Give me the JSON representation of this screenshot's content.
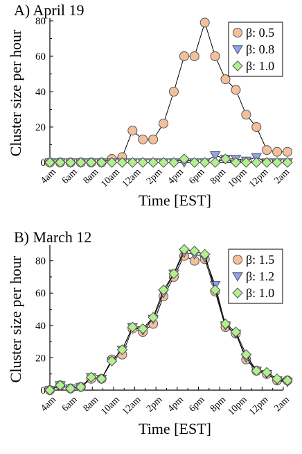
{
  "colors": {
    "series_0": "#F4C09C",
    "series_1": "#8EA3F2",
    "series_2": "#B2F08E",
    "line": "#000000"
  },
  "chart_data": [
    {
      "type": "line",
      "title": "A)   April 19",
      "xlabel": "Time [EST]",
      "ylabel": "Cluster size per hour",
      "ylim": [
        0,
        80
      ],
      "xlim": [
        0,
        22
      ],
      "yticks": [
        "0",
        "20",
        "40",
        "60",
        "80"
      ],
      "xtick_labels": [
        "4am",
        "6am",
        "8am",
        "10am",
        "12am",
        "2pm",
        "4pm",
        "6pm",
        "8pm",
        "10pm",
        "12pm",
        "2am"
      ],
      "legend_position": "top-right",
      "series": [
        {
          "name": "β: 0.5",
          "marker": "circle",
          "values": [
            0,
            0,
            0,
            0,
            0,
            0,
            2,
            3,
            18,
            13,
            13,
            22,
            40,
            60,
            60,
            79,
            60,
            47,
            41,
            27,
            20,
            7,
            6,
            6
          ]
        },
        {
          "name": "β: 0.8",
          "marker": "triangle-down",
          "values": [
            0,
            0,
            0,
            0,
            0,
            0,
            0,
            0,
            0,
            0,
            0,
            0,
            0,
            0,
            0,
            0,
            4,
            2,
            2,
            1,
            3,
            0,
            0,
            0
          ]
        },
        {
          "name": "β: 1.0",
          "marker": "diamond",
          "values": [
            0,
            0,
            0,
            0,
            0,
            0,
            0,
            0,
            0,
            0,
            0,
            0,
            0,
            2,
            0,
            0,
            0,
            2,
            0,
            0,
            0,
            0,
            0,
            0
          ]
        }
      ]
    },
    {
      "type": "line",
      "title": "B)   March 12",
      "xlabel": "Time [EST]",
      "ylabel": "Cluster size per hour",
      "ylim": [
        0,
        88
      ],
      "xlim": [
        0,
        22
      ],
      "yticks": [
        "0",
        "20",
        "40",
        "60",
        "80"
      ],
      "xtick_labels": [
        "4am",
        "6am",
        "8am",
        "10am",
        "12am",
        "2pm",
        "4pm",
        "6pm",
        "8pm",
        "10pm",
        "12pm",
        "2am"
      ],
      "legend_position": "top-right",
      "series": [
        {
          "name": "β: 1.5",
          "marker": "circle",
          "values": [
            0,
            3,
            1,
            2,
            7,
            7,
            19,
            22,
            38,
            36,
            41,
            58,
            70,
            83,
            80,
            81,
            61,
            39,
            35,
            19,
            12,
            10,
            6,
            6
          ]
        },
        {
          "name": "β: 1.2",
          "marker": "triangle-down",
          "values": [
            0,
            3,
            1,
            2,
            8,
            7,
            18,
            25,
            39,
            37,
            44,
            60,
            72,
            85,
            84,
            82,
            65,
            40,
            35,
            20,
            12,
            10,
            6,
            5
          ]
        },
        {
          "name": "β: 1.0",
          "marker": "diamond",
          "values": [
            0,
            3,
            1,
            2,
            8,
            7,
            18,
            25,
            39,
            38,
            45,
            62,
            72,
            87,
            86,
            84,
            62,
            41,
            36,
            22,
            12,
            11,
            7,
            6
          ]
        }
      ]
    }
  ]
}
